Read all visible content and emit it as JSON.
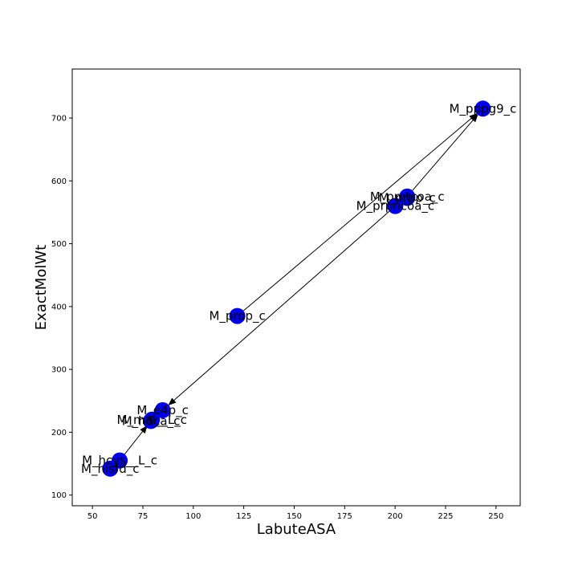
{
  "chart_data": {
    "type": "scatter",
    "title": "",
    "xlabel": "LabuteASA",
    "ylabel": "ExactMolWt",
    "xlim": [
      40,
      262
    ],
    "ylim": [
      83,
      778
    ],
    "xticks": [
      50,
      75,
      100,
      125,
      150,
      175,
      200,
      225,
      250
    ],
    "yticks": [
      100,
      200,
      300,
      400,
      500,
      600,
      700
    ],
    "grid": false,
    "marker_color": "#0000ee",
    "points": [
      {
        "label": "M_prpncoa_c",
        "x": 200.1,
        "y": 560.0
      },
      {
        "label": "M_pmtcoa_c",
        "x": 206.0,
        "y": 575.0
      },
      {
        "label": "M_prpp_c",
        "x": 206.0,
        "y": 573.0
      },
      {
        "label": "M_pppg9_c",
        "x": 243.5,
        "y": 715.0
      },
      {
        "label": "M_prop_c",
        "x": 121.8,
        "y": 385.0
      },
      {
        "label": "M_e4p_c",
        "x": 84.8,
        "y": 235.0
      },
      {
        "label": "M_mal__L_c",
        "x": 79.5,
        "y": 220.0
      },
      {
        "label": "M_hdca_c",
        "x": 79.0,
        "y": 218.0
      },
      {
        "label": "M_hcys__L_c",
        "x": 63.5,
        "y": 155.0
      },
      {
        "label": "M_hisfd_c",
        "x": 58.8,
        "y": 142.0
      }
    ],
    "edges": [
      {
        "from": "M_prop_c",
        "to": "M_pppg9_c"
      },
      {
        "from": "M_prpncoa_c",
        "to": "M_e4p_c"
      },
      {
        "from": "M_pmtcoa_c",
        "to": "M_pppg9_c"
      },
      {
        "from": "M_hcys__L_c",
        "to": "M_mal__L_c"
      }
    ]
  }
}
